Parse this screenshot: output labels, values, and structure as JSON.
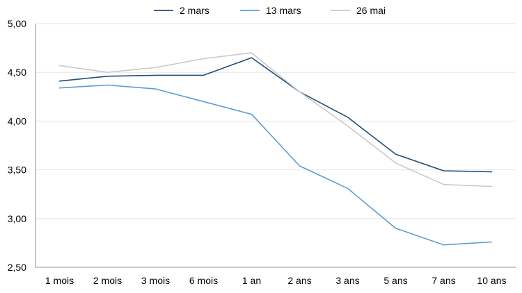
{
  "chart_data": {
    "type": "line",
    "title": "",
    "xlabel": "",
    "ylabel": "",
    "categories": [
      "1 mois",
      "2 mois",
      "3 mois",
      "6 mois",
      "1 an",
      "2 ans",
      "3 ans",
      "5 ans",
      "7 ans",
      "10 ans"
    ],
    "ylim": [
      2.5,
      5.0
    ],
    "yticks": [
      "5,00",
      "4,50",
      "4,00",
      "3,50",
      "3,00",
      "2,50"
    ],
    "ytick_values": [
      5.0,
      4.5,
      4.0,
      3.5,
      3.0,
      2.5
    ],
    "grid": "horizontal",
    "legend_position": "top",
    "series": [
      {
        "name": "2 mars",
        "color": "#1f4e79",
        "values": [
          4.41,
          4.46,
          4.47,
          4.47,
          4.65,
          4.3,
          4.04,
          3.66,
          3.49,
          3.48
        ]
      },
      {
        "name": "13 mars",
        "color": "#5b9bd5",
        "values": [
          4.34,
          4.37,
          4.33,
          4.2,
          4.07,
          3.54,
          3.31,
          2.9,
          2.73,
          2.76
        ]
      },
      {
        "name": "26 mai",
        "color": "#c9c9c9",
        "values": [
          4.57,
          4.5,
          4.55,
          4.64,
          4.7,
          4.3,
          3.95,
          3.57,
          3.35,
          3.33
        ]
      }
    ]
  }
}
